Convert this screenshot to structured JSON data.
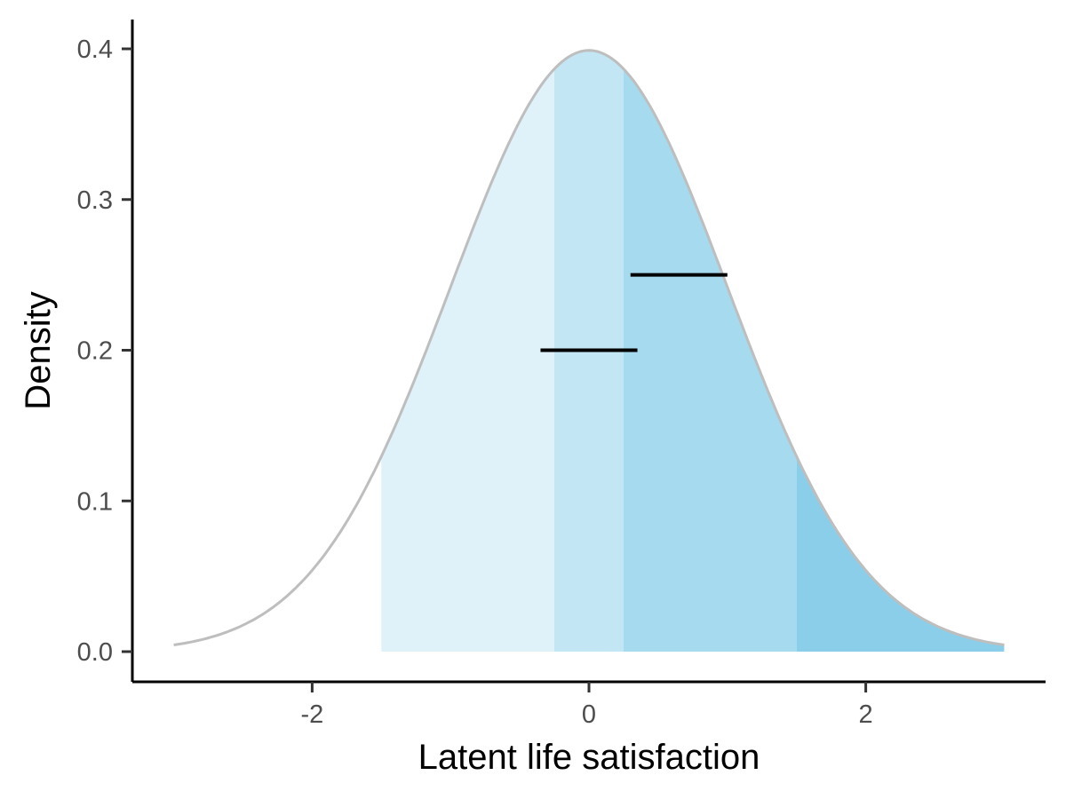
{
  "chart_data": {
    "type": "area",
    "title": "",
    "xlabel": "Latent life satisfaction",
    "ylabel": "Density",
    "xlim": [
      -3.0,
      3.0
    ],
    "ylim": [
      0.0,
      0.4
    ],
    "xticks": [
      -2,
      0,
      2
    ],
    "xtick_labels": [
      "-2",
      "0",
      "2"
    ],
    "yticks": [
      0.0,
      0.1,
      0.2,
      0.3,
      0.4
    ],
    "ytick_labels": [
      "0.0",
      "0.1",
      "0.2",
      "0.3",
      "0.4"
    ],
    "grid": false,
    "legend": "none",
    "curve": {
      "distribution": "standard normal density",
      "x_range": [
        -3.0,
        3.0
      ],
      "color": "#bebebe"
    },
    "shaded_regions": [
      {
        "x_from": -1.5,
        "x_to": -0.25,
        "color": "#dff1f9"
      },
      {
        "x_from": -0.25,
        "x_to": 0.25,
        "color": "#c3e6f4"
      },
      {
        "x_from": 0.25,
        "x_to": 1.5,
        "color": "#a6daef"
      },
      {
        "x_from": 1.5,
        "x_to": 3.0,
        "color": "#8acee9"
      }
    ],
    "segments": [
      {
        "x_from": -0.35,
        "x_to": 0.35,
        "y": 0.2,
        "color": "#000000"
      },
      {
        "x_from": 0.3,
        "x_to": 1.0,
        "y": 0.25,
        "color": "#000000"
      }
    ]
  }
}
